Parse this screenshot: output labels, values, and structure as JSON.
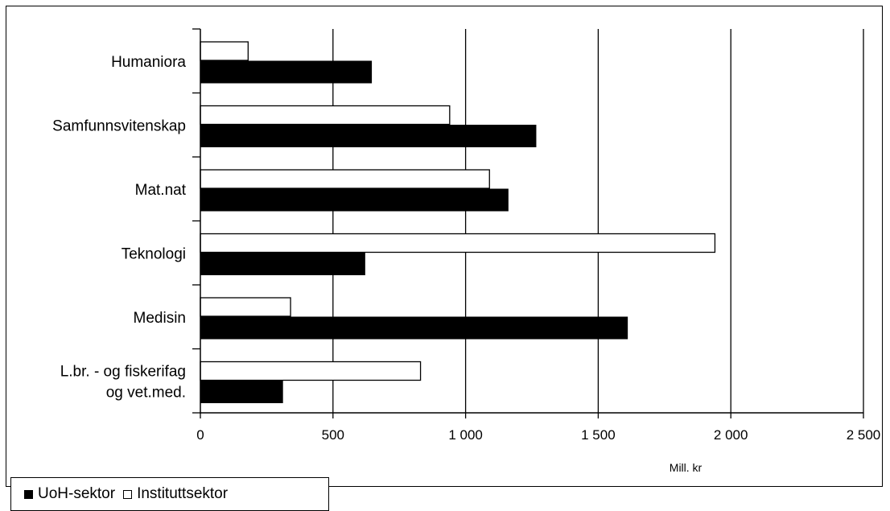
{
  "chart_data": {
    "type": "bar",
    "orientation": "horizontal",
    "categories": [
      [
        "Humaniora"
      ],
      [
        "Samfunnsvitenskap"
      ],
      [
        "Mat.nat"
      ],
      [
        "Teknologi"
      ],
      [
        "Medisin"
      ],
      [
        "L.br. - og fiskerifag",
        "og vet.med."
      ]
    ],
    "series": [
      {
        "name": "Instituttsektor",
        "color": "#ffffff",
        "values": [
          180,
          940,
          1090,
          1940,
          340,
          830
        ]
      },
      {
        "name": "UoH-sektor",
        "color": "#000000",
        "values": [
          645,
          1265,
          1160,
          620,
          1610,
          310
        ]
      }
    ],
    "xlim": [
      0,
      2500
    ],
    "xticks": [
      0,
      500,
      1000,
      1500,
      2000,
      2500
    ],
    "xtick_labels": [
      "0",
      "500",
      "1 000",
      "1 500",
      "2 000",
      "2 500"
    ],
    "xlabel": "Mill. kr",
    "grid": "vertical",
    "legend_position": "bottom-left"
  }
}
